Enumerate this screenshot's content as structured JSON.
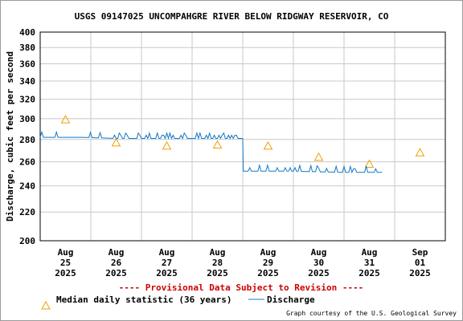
{
  "chart_data": {
    "type": "line",
    "title": "USGS 09147025 UNCOMPAHGRE RIVER BELOW RIDGWAY RESERVOIR, CO",
    "ylabel": "Discharge, cubic feet per second",
    "ylim": [
      200,
      400
    ],
    "y_ticks": [
      200,
      220,
      240,
      260,
      280,
      300,
      320,
      340,
      360,
      380,
      400
    ],
    "x_ticks": [
      {
        "month": "Aug",
        "day": "25",
        "year": "2025"
      },
      {
        "month": "Aug",
        "day": "26",
        "year": "2025"
      },
      {
        "month": "Aug",
        "day": "27",
        "year": "2025"
      },
      {
        "month": "Aug",
        "day": "28",
        "year": "2025"
      },
      {
        "month": "Aug",
        "day": "29",
        "year": "2025"
      },
      {
        "month": "Aug",
        "day": "30",
        "year": "2025"
      },
      {
        "month": "Aug",
        "day": "31",
        "year": "2025"
      },
      {
        "month": "Sep",
        "day": "01",
        "year": "2025"
      }
    ],
    "grid": true,
    "series": [
      {
        "name": "Median daily statistic (36 years)",
        "type": "scatter",
        "color": "#f0a000",
        "x": [
          "2025-08-25 12:00",
          "2025-08-26 12:00",
          "2025-08-27 12:00",
          "2025-08-28 12:00",
          "2025-08-29 12:00",
          "2025-08-30 12:00",
          "2025-08-31 12:00",
          "2025-09-01 12:00"
        ],
        "y": [
          299,
          277,
          274,
          275,
          274,
          264,
          258,
          268
        ]
      },
      {
        "name": "Discharge",
        "type": "line",
        "color": "#1478c8",
        "x": [
          "2025-08-25 00:00",
          "2025-08-25 20:00",
          "2025-08-26 12:00",
          "2025-08-27 12:00",
          "2025-08-28 12:00",
          "2025-08-29 00:00",
          "2025-08-29 00:15",
          "2025-08-30 00:00",
          "2025-08-31 00:00",
          "2025-08-31 18:00"
        ],
        "y": [
          282,
          282,
          281,
          281,
          281,
          281,
          252,
          252,
          251,
          251
        ],
        "noise_max": 5
      }
    ],
    "provisional_note": "---- Provisional Data Subject to Revision ----",
    "credit": "Graph courtesy of the U.S. Geological Survey"
  }
}
